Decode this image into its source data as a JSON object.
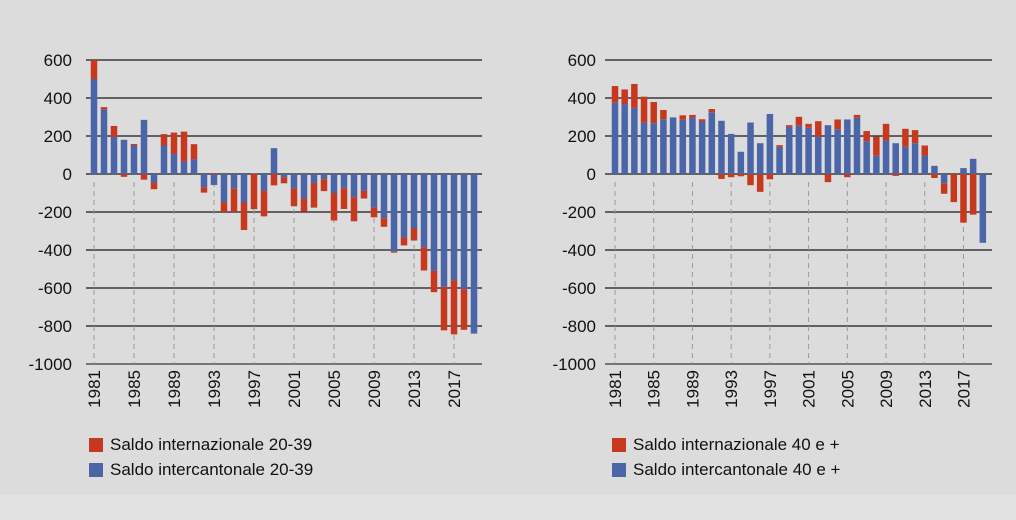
{
  "chart_data": [
    {
      "type": "bar",
      "stacked": true,
      "categories": [
        1981,
        1982,
        1983,
        1984,
        1985,
        1986,
        1987,
        1988,
        1989,
        1990,
        1991,
        1992,
        1993,
        1994,
        1995,
        1996,
        1997,
        1998,
        1999,
        2000,
        2001,
        2002,
        2003,
        2004,
        2005,
        2006,
        2007,
        2008,
        2009,
        2010,
        2011,
        2012,
        2013,
        2014,
        2015,
        2016,
        2017,
        2018,
        2019
      ],
      "tick_labels": [
        "1981",
        "1985",
        "1989",
        "1993",
        "1997",
        "2001",
        "2005",
        "2009",
        "2013",
        "2017"
      ],
      "yticks": [
        "600",
        "400",
        "200",
        "0",
        "-200",
        "-400",
        "-600",
        "-800",
        "-1000"
      ],
      "ylim": [
        -1000,
        600
      ],
      "grid": true,
      "legend_position": "bottom",
      "series": [
        {
          "name": "Saldo internazionale 20-39",
          "color": "#c7391f",
          "values": [
            100,
            12,
            58,
            -15,
            8,
            -30,
            -35,
            60,
            113,
            158,
            80,
            -28,
            5,
            -52,
            -122,
            -145,
            -185,
            -134,
            -60,
            -32,
            -93,
            -69,
            -130,
            -62,
            -145,
            -109,
            -127,
            -40,
            -51,
            -45,
            -5,
            -42,
            -63,
            -123,
            -112,
            -229,
            -284,
            -214,
            0
          ]
        },
        {
          "name": "Saldo intercantonale 20-39",
          "color": "#4a66a8",
          "values": [
            500,
            340,
            195,
            180,
            150,
            285,
            -45,
            150,
            105,
            65,
            77,
            -70,
            -58,
            -148,
            -78,
            -150,
            3,
            -89,
            136,
            -17,
            -77,
            -129,
            -47,
            -28,
            -100,
            -75,
            -122,
            -89,
            -177,
            -233,
            -409,
            -334,
            -287,
            -385,
            -510,
            -594,
            -560,
            -606,
            -840
          ]
        }
      ]
    },
    {
      "type": "bar",
      "stacked": true,
      "categories": [
        1981,
        1982,
        1983,
        1984,
        1985,
        1986,
        1987,
        1988,
        1989,
        1990,
        1991,
        1992,
        1993,
        1994,
        1995,
        1996,
        1997,
        1998,
        1999,
        2000,
        2001,
        2002,
        2003,
        2004,
        2005,
        2006,
        2007,
        2008,
        2009,
        2010,
        2011,
        2012,
        2013,
        2014,
        2015,
        2016,
        2017,
        2018,
        2019
      ],
      "tick_labels": [
        "1981",
        "1985",
        "1989",
        "1993",
        "1997",
        "2001",
        "2005",
        "2009",
        "2013",
        "2017"
      ],
      "yticks": [
        "600",
        "400",
        "200",
        "0",
        "-200",
        "-400",
        "-600",
        "-800",
        "-1000"
      ],
      "ylim": [
        -1000,
        600
      ],
      "grid": true,
      "legend_position": "bottom",
      "series": [
        {
          "name": "Saldo internazionale 40 e +",
          "color": "#c7391f",
          "values": [
            88,
            77,
            126,
            137,
            112,
            49,
            0,
            24,
            14,
            12,
            17,
            -26,
            -17,
            -12,
            -59,
            -94,
            -28,
            9,
            9,
            47,
            21,
            81,
            -43,
            52,
            -17,
            15,
            54,
            101,
            88,
            -10,
            94,
            69,
            53,
            -21,
            -55,
            -148,
            -256,
            -214,
            0
          ]
        },
        {
          "name": "Saldo intercantonale 40 e +",
          "color": "#4a66a8",
          "values": [
            375,
            368,
            348,
            270,
            267,
            288,
            298,
            285,
            297,
            276,
            325,
            280,
            211,
            117,
            271,
            162,
            316,
            143,
            248,
            254,
            243,
            197,
            257,
            235,
            287,
            296,
            172,
            96,
            176,
            162,
            144,
            162,
            97,
            43,
            -49,
            0,
            31,
            80,
            -362
          ]
        }
      ]
    }
  ]
}
